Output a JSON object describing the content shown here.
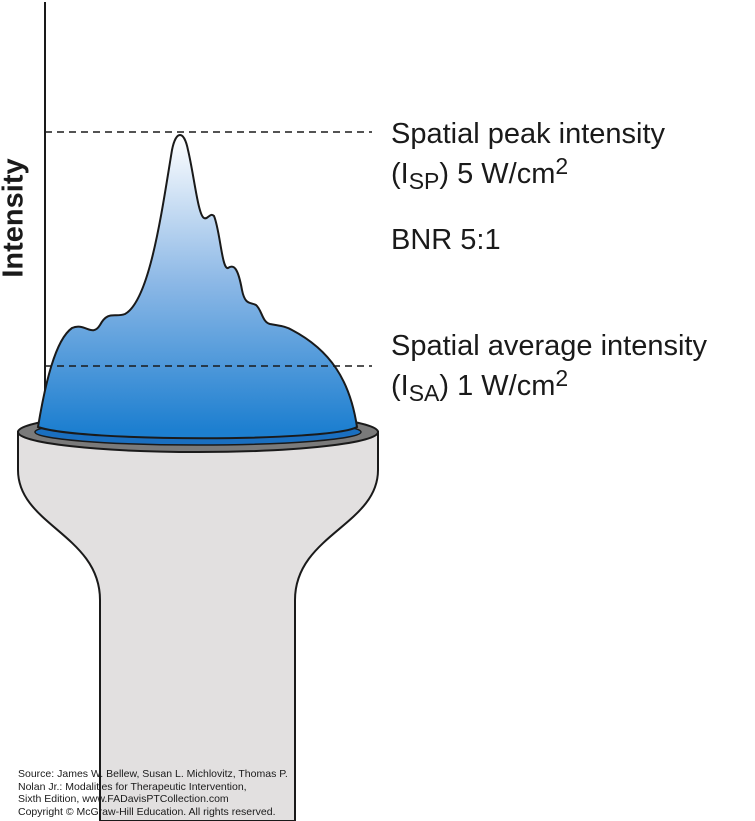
{
  "axis": {
    "label": "Intensity"
  },
  "annotations": {
    "spatial_peak": {
      "label": "Spatial peak intensity",
      "open": "(I",
      "symbol_subscript": "SP",
      "value": ") 5 W/cm",
      "unit_superscript": "2"
    },
    "bnr": {
      "text": "BNR 5:1"
    },
    "spatial_average": {
      "label": "Spatial average intensity",
      "open": "(I",
      "symbol_subscript": "SA",
      "value": ") 1 W/cm",
      "unit_superscript": "2"
    }
  },
  "source_lines": [
    "Source: James W. Bellew, Susan L. Michlovitz, Thomas P.",
    "Nolan Jr.: Modalities for Therapeutic Intervention,",
    "Sixth Edition, www.FADavisPTCollection.com",
    "Copyright © McGraw-Hill Education. All rights reserved."
  ],
  "colors": {
    "beam_top": "#ffffff",
    "beam_bottom": "#1d7fd0",
    "transducer_body": "#e2e0e0",
    "transducer_rim": "#7a7a7a",
    "outline": "#1a1a1a",
    "dashed_line": "#1a1a1a"
  }
}
